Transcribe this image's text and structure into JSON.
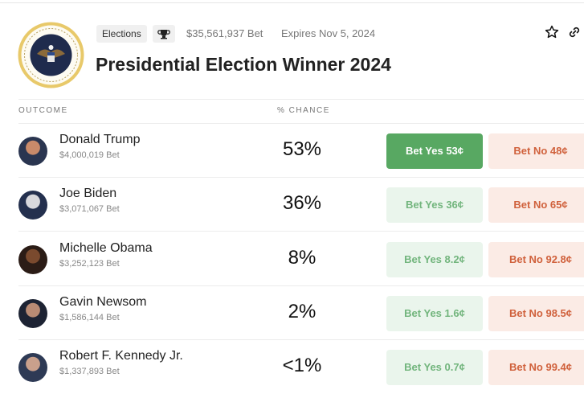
{
  "header": {
    "tag": "Elections",
    "volume": "$35,561,937 Bet",
    "expires": "Expires Nov 5, 2024",
    "title": "Presidential Election Winner 2024"
  },
  "table": {
    "columns": [
      "OUTCOME",
      "% CHANCE"
    ],
    "rows": [
      {
        "name": "Donald Trump",
        "bet": "$4,000,019 Bet",
        "chance": "53%",
        "yes": "Bet Yes 53¢",
        "no": "Bet No 48¢"
      },
      {
        "name": "Joe Biden",
        "bet": "$3,071,067 Bet",
        "chance": "36%",
        "yes": "Bet Yes 36¢",
        "no": "Bet No 65¢"
      },
      {
        "name": "Michelle Obama",
        "bet": "$3,252,123 Bet",
        "chance": "8%",
        "yes": "Bet Yes 8.2¢",
        "no": "Bet No 92.8¢"
      },
      {
        "name": "Gavin Newsom",
        "bet": "$1,586,144 Bet",
        "chance": "2%",
        "yes": "Bet Yes 1.6¢",
        "no": "Bet No 98.5¢"
      },
      {
        "name": "Robert F. Kennedy Jr.",
        "bet": "$1,337,893 Bet",
        "chance": "<1%",
        "yes": "Bet Yes 0.7¢",
        "no": "Bet No 99.4¢"
      }
    ]
  }
}
